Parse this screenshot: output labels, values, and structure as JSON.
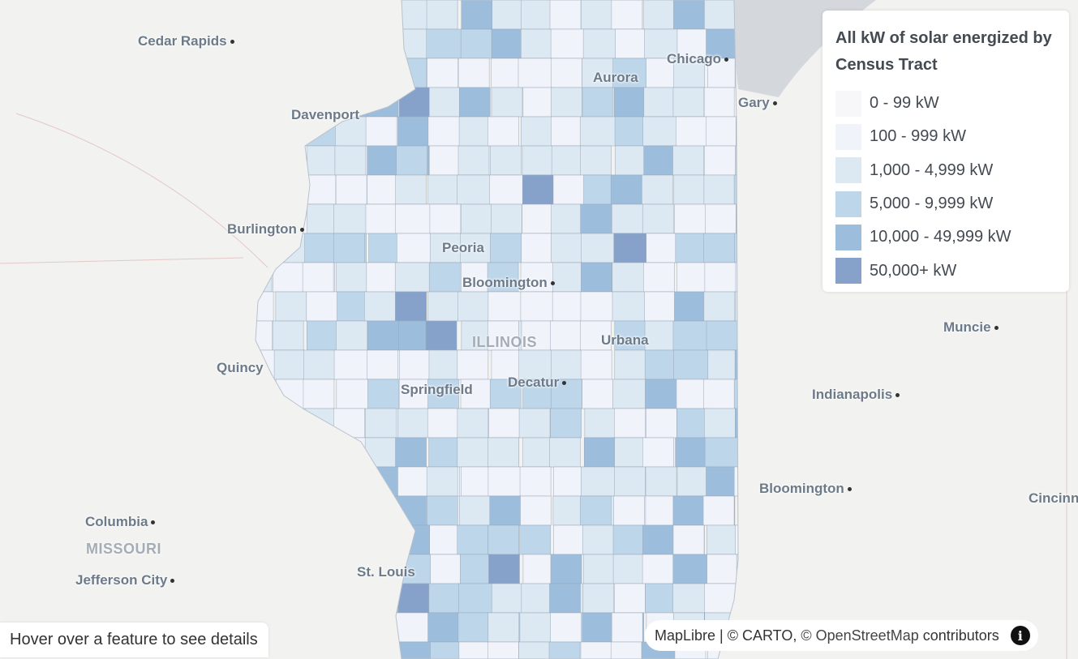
{
  "map": {
    "colors": {
      "background": "#f2f2f0",
      "lake": "#d4d8dc",
      "tract_border": "#9aa8b8"
    },
    "cities": [
      "Cedar Rapids",
      "Davenport",
      "Burlington",
      "Quincy",
      "Columbia",
      "Jefferson City",
      "St. Louis",
      "Peoria",
      "Bloomington",
      "Springfield",
      "Decatur",
      "Urbana",
      "Aurora",
      "Chicago",
      "Gary",
      "Muncie",
      "Indianapolis",
      "Bloomington",
      "Cincinnati"
    ],
    "states": [
      "ILLINOIS",
      "MISSOURI"
    ]
  },
  "legend": {
    "title": "All kW of solar energized by Census Tract",
    "items": [
      {
        "label": "0 - 99 kW",
        "color": "#f7f7f9"
      },
      {
        "label": "100 - 999 kW",
        "color": "#f1f3fb"
      },
      {
        "label": "1,000 - 4,999 kW",
        "color": "#dce8f2"
      },
      {
        "label": "5,000 - 9,999 kW",
        "color": "#bdd6ea"
      },
      {
        "label": "10,000 - 49,999 kW",
        "color": "#9dbddc"
      },
      {
        "label": "50,000+ kW",
        "color": "#86a2cb"
      }
    ]
  },
  "hover_hint": "Hover over a feature to see details",
  "attribution": {
    "maplibre": "MapLibre",
    "carto": "© CARTO,",
    "osm": "© OpenStreetMap",
    "contributors": "contributors",
    "info_icon": "info-icon"
  }
}
